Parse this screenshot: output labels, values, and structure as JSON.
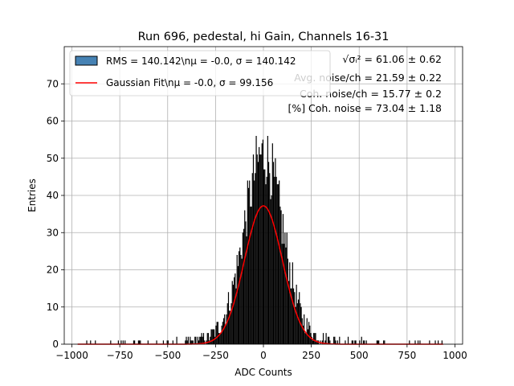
{
  "chart_data": {
    "type": "bar",
    "title": "Run 696, pedestal, hi Gain, Channels 16-31",
    "xlabel": "ADC Counts",
    "ylabel": "Entries",
    "xlim": [
      -1040,
      1040
    ],
    "ylim": [
      0,
      80
    ],
    "xticks": [
      -1000,
      -750,
      -500,
      -250,
      0,
      250,
      500,
      750,
      1000
    ],
    "xtick_labels": [
      "−1000",
      "−750",
      "−500",
      "−250",
      "0",
      "250",
      "500",
      "750",
      "1000"
    ],
    "yticks": [
      0,
      10,
      20,
      30,
      40,
      50,
      60,
      70
    ],
    "grid": true,
    "legend_position": "top-left",
    "series": [
      {
        "name": "RMS = 140.142\\nμ = -0.0, σ = 140.142",
        "kind": "histogram",
        "color": "#4682b4",
        "rms": 140.142,
        "mean": -0.0,
        "range": [
          -970,
          940
        ]
      },
      {
        "name": "Gaussian Fit\\nμ = -0.0, σ = 99.156",
        "kind": "line",
        "color": "#ff0000",
        "mu": -0.0,
        "sigma": 99.156,
        "amplitude": 37.2
      }
    ],
    "annotations": [
      "√σᵢ² = 61.06 ± 0.62",
      "Avg. noise/ch = 21.59 ± 0.22",
      "Coh. noise/ch = 15.77 ± 0.2",
      "[%] Coh. noise = 73.04 ± 1.18"
    ]
  }
}
